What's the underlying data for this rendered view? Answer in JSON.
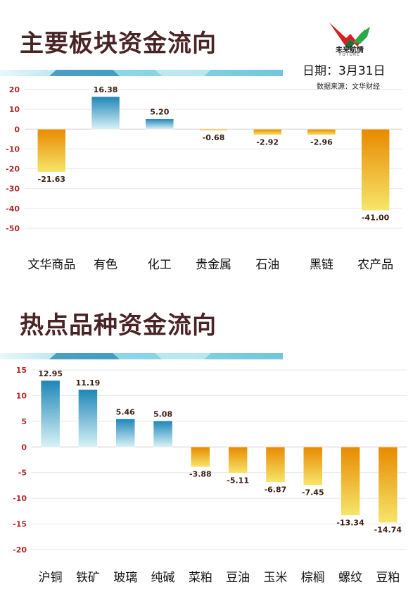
{
  "header": {
    "logo_text": "未来航情",
    "logo_sub": "FUTURE",
    "date": "日期：3月31日",
    "source": "数据来源：文华财经"
  },
  "colors": {
    "title": "#4a2424",
    "positive_top": "#1e86b8",
    "positive_bottom": "#d8f2f6",
    "negative_top": "#e88a00",
    "negative_bottom": "#f6e56a",
    "tick": "#b22a2a",
    "stripe": "#7fd3e6"
  },
  "chart_data": [
    {
      "type": "bar",
      "title": "主要板块资金流向",
      "categories": [
        "文华商品",
        "有色",
        "化工",
        "贵金属",
        "石油",
        "黑链",
        "农产品"
      ],
      "values": [
        -21.63,
        16.38,
        5.2,
        -0.68,
        -2.92,
        -2.96,
        -41.0
      ],
      "value_labels": [
        "-21.63",
        "16.38",
        "5.20",
        "-0.68",
        "-2.92",
        "-2.96",
        "-41.00"
      ],
      "ylim": [
        -50,
        20
      ],
      "yticks": [
        20,
        10,
        0,
        -10,
        -20,
        -30,
        -40,
        -50
      ],
      "ytick_labels": [
        "20",
        "10",
        "0",
        "-10",
        "-20",
        "-30",
        "-40",
        "-50"
      ],
      "grid": true
    },
    {
      "type": "bar",
      "title": "热点品种资金流向",
      "categories": [
        "沪铜",
        "铁矿",
        "玻璃",
        "纯碱",
        "菜粕",
        "豆油",
        "玉米",
        "棕榈",
        "螺纹",
        "豆粕"
      ],
      "values": [
        12.95,
        11.19,
        5.46,
        5.08,
        -3.88,
        -5.11,
        -6.87,
        -7.45,
        -13.34,
        -14.74
      ],
      "value_labels": [
        "12.95",
        "11.19",
        "5.46",
        "5.08",
        "-3.88",
        "-5.11",
        "-6.87",
        "-7.45",
        "-13.34",
        "-14.74"
      ],
      "ylim": [
        -20,
        15
      ],
      "yticks": [
        15,
        10,
        5,
        0,
        -5,
        -10,
        -15,
        -20
      ],
      "ytick_labels": [
        "15",
        "10",
        "5",
        "0",
        "-5",
        "-10",
        "-15",
        "-20"
      ],
      "grid": true
    }
  ]
}
